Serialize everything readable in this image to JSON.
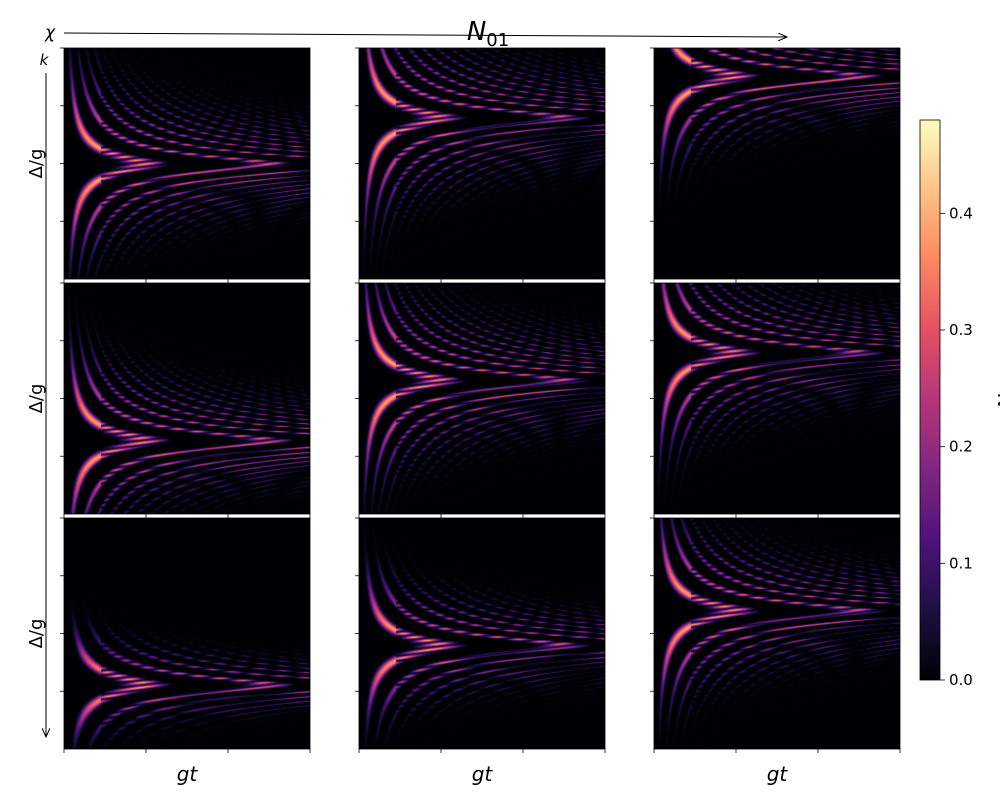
{
  "figure": {
    "title": "N",
    "title_sub": "01",
    "chi_label": "χ",
    "k_label": "k"
  },
  "colormap": {
    "name": "magma",
    "stops": [
      "#000004",
      "#1c1044",
      "#4f127b",
      "#812581",
      "#b5367a",
      "#e55064",
      "#fb8761",
      "#fec287",
      "#fcfdbf"
    ]
  },
  "chart_data": {
    "type": "heatmap",
    "grid": {
      "rows": 3,
      "cols": 3
    },
    "row_ylabel": "Δ/g",
    "col_xlabel": "gt",
    "tick_labels_shown": false,
    "panels": [
      {
        "row": 0,
        "col": 0,
        "center": 0.5,
        "halfwidth": 0.4,
        "peak": 0.45
      },
      {
        "row": 0,
        "col": 1,
        "center": 0.3,
        "halfwidth": 0.42,
        "peak": 0.45
      },
      {
        "row": 0,
        "col": 2,
        "center": 0.12,
        "halfwidth": 0.35,
        "peak": 0.46
      },
      {
        "row": 1,
        "col": 0,
        "center": 0.68,
        "halfwidth": 0.38,
        "peak": 0.45
      },
      {
        "row": 1,
        "col": 1,
        "center": 0.42,
        "halfwidth": 0.42,
        "peak": 0.45
      },
      {
        "row": 1,
        "col": 2,
        "center": 0.3,
        "halfwidth": 0.4,
        "peak": 0.44
      },
      {
        "row": 2,
        "col": 0,
        "center": 0.72,
        "halfwidth": 0.22,
        "peak": 0.46
      },
      {
        "row": 2,
        "col": 1,
        "center": 0.55,
        "halfwidth": 0.3,
        "peak": 0.46
      },
      {
        "row": 2,
        "col": 2,
        "center": 0.4,
        "halfwidth": 0.38,
        "peak": 0.45
      }
    ],
    "colorbar": {
      "label": "N",
      "min": 0.0,
      "max": 0.48,
      "ticks": [
        0.0,
        0.1,
        0.2,
        0.3,
        0.4
      ],
      "tick_labels": [
        "0.0",
        "0.1",
        "0.2",
        "0.3",
        "0.4"
      ]
    }
  }
}
